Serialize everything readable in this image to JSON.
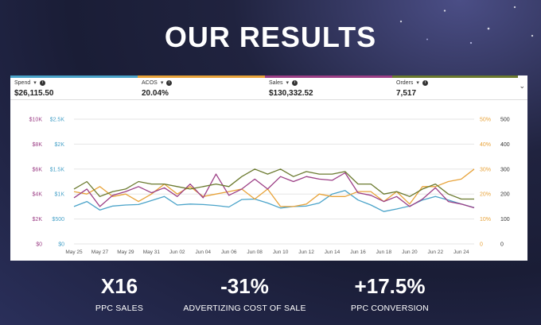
{
  "page": {
    "title": "OUR RESULTS"
  },
  "metrics": [
    {
      "label": "Spend",
      "value": "$26,115.50",
      "color": "#4aa3c9"
    },
    {
      "label": "ACOS",
      "value": "20.04%",
      "color": "#e8a33a"
    },
    {
      "label": "Sales",
      "value": "$130,332.52",
      "color": "#9c3f86"
    },
    {
      "label": "Orders",
      "value": "7,517",
      "color": "#6b7a2f"
    }
  ],
  "chart_data": {
    "type": "line",
    "x": [
      "May 25",
      "May 26",
      "May 27",
      "May 28",
      "May 29",
      "May 30",
      "May 31",
      "Jun 01",
      "Jun 02",
      "Jun 03",
      "Jun 04",
      "Jun 05",
      "Jun 06",
      "Jun 07",
      "Jun 08",
      "Jun 09",
      "Jun 10",
      "Jun 11",
      "Jun 12",
      "Jun 13",
      "Jun 14",
      "Jun 15",
      "Jun 16",
      "Jun 17",
      "Jun 18",
      "Jun 19",
      "Jun 20",
      "Jun 21",
      "Jun 22",
      "Jun 23",
      "Jun 24",
      "Jun 25"
    ],
    "x_tick_labels": [
      "May 25",
      "May 27",
      "May 29",
      "May 31",
      "Jun 02",
      "Jun 04",
      "Jun 06",
      "Jun 08",
      "Jun 10",
      "Jun 12",
      "Jun 14",
      "Jun 16",
      "Jun 18",
      "Jun 20",
      "Jun 22",
      "Jun 24"
    ],
    "axes": {
      "sales": {
        "ticks": [
          "$0",
          "$2K",
          "$4K",
          "$6K",
          "$8K",
          "$10K"
        ],
        "range": [
          0,
          10000
        ],
        "color": "#9c3f86"
      },
      "spend": {
        "ticks": [
          "$0",
          "$500",
          "$1K",
          "$1.5K",
          "$2K",
          "$2.5K"
        ],
        "range": [
          0,
          2500
        ],
        "color": "#4aa3c9"
      },
      "acos": {
        "ticks": [
          "0",
          "10%",
          "20%",
          "30%",
          "40%",
          "50%"
        ],
        "range": [
          0,
          50
        ],
        "color": "#e8a33a"
      },
      "orders": {
        "ticks": [
          "0",
          "100",
          "200",
          "300",
          "400",
          "500"
        ],
        "range": [
          0,
          500
        ],
        "color": "#333333"
      }
    },
    "grid": true,
    "series": [
      {
        "name": "Spend",
        "axis": "spend",
        "color": "#4aa3c9",
        "values": [
          750,
          850,
          680,
          760,
          780,
          790,
          870,
          950,
          780,
          800,
          790,
          770,
          740,
          890,
          900,
          820,
          720,
          750,
          760,
          820,
          1000,
          1070,
          880,
          780,
          650,
          700,
          760,
          880,
          950,
          880,
          800,
          730
        ]
      },
      {
        "name": "ACOS",
        "axis": "acos",
        "color": "#e8a33a",
        "values": [
          21,
          20,
          23,
          19,
          20,
          17,
          20,
          24,
          20,
          23,
          19,
          20,
          21,
          22,
          18,
          22,
          15,
          15,
          16,
          20,
          19,
          19,
          21,
          21,
          17,
          21,
          16,
          23,
          23,
          25,
          26,
          30
        ]
      },
      {
        "name": "Sales",
        "axis": "sales",
        "color": "#9c3f86",
        "values": [
          3700,
          4400,
          3000,
          3900,
          4200,
          4600,
          4100,
          4500,
          3800,
          4800,
          3700,
          5600,
          3900,
          4400,
          5200,
          4400,
          5400,
          5000,
          5400,
          5200,
          5100,
          5700,
          4100,
          3900,
          3400,
          3800,
          3000,
          3600,
          4500,
          3400,
          3200,
          2900
        ]
      },
      {
        "name": "Orders",
        "axis": "orders",
        "color": "#6b7a2f",
        "values": [
          220,
          250,
          190,
          210,
          220,
          250,
          240,
          240,
          230,
          220,
          230,
          240,
          230,
          270,
          300,
          280,
          300,
          270,
          290,
          280,
          280,
          290,
          240,
          240,
          200,
          210,
          190,
          220,
          240,
          200,
          180,
          180
        ]
      }
    ]
  },
  "stats": [
    {
      "value": "X16",
      "label": "PPC SALES"
    },
    {
      "value": "-31%",
      "label": "ADVERTIZING COST OF SALE"
    },
    {
      "value": "+17.5%",
      "label": "PPC CONVERSION"
    }
  ]
}
